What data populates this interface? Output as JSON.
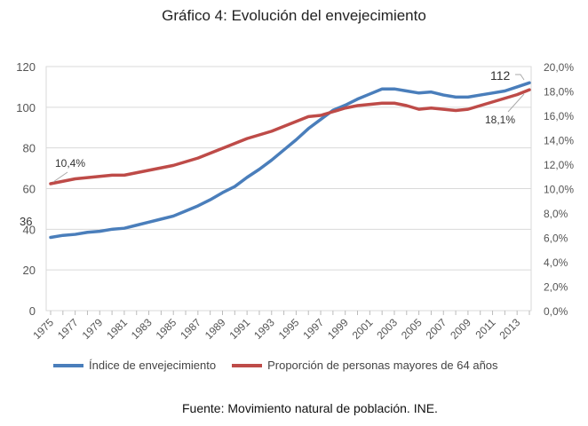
{
  "title": "Gráfico 4: Evolución del envejecimiento",
  "source": "Fuente: Movimiento natural de población. INE.",
  "chart_data": {
    "type": "line",
    "title": "Gráfico 4: Evolución del envejecimiento",
    "x": [
      1975,
      1976,
      1977,
      1978,
      1979,
      1980,
      1981,
      1982,
      1983,
      1984,
      1985,
      1986,
      1987,
      1988,
      1989,
      1990,
      1991,
      1992,
      1993,
      1994,
      1995,
      1996,
      1997,
      1998,
      1999,
      2000,
      2001,
      2002,
      2003,
      2004,
      2005,
      2006,
      2007,
      2008,
      2009,
      2010,
      2011,
      2012,
      2013,
      2014
    ],
    "x_tick_labels": [
      "1975",
      "1977",
      "1979",
      "1981",
      "1983",
      "1985",
      "1987",
      "1989",
      "1991",
      "1993",
      "1995",
      "1997",
      "1999",
      "2001",
      "2003",
      "2005",
      "2007",
      "2009",
      "2011",
      "2013"
    ],
    "y_left": {
      "range": [
        0,
        120
      ],
      "ticks": [
        "0",
        "20",
        "40",
        "60",
        "80",
        "100",
        "120"
      ]
    },
    "y_right": {
      "range": [
        0,
        20
      ],
      "ticks": [
        "0,0%",
        "2,0%",
        "4,0%",
        "6,0%",
        "8,0%",
        "10,0%",
        "12,0%",
        "14,0%",
        "16,0%",
        "18,0%",
        "20,0%"
      ]
    },
    "grid": true,
    "legend_position": "bottom",
    "series": [
      {
        "name": "Índice de envejecimiento",
        "axis": "left",
        "color": "#4a7ebb",
        "values": [
          36,
          37,
          37.5,
          38.5,
          39,
          40,
          40.5,
          42,
          43.5,
          45,
          46.5,
          49,
          51.5,
          54.5,
          58,
          61,
          65.5,
          69.5,
          74,
          79,
          84,
          89.5,
          94,
          98.5,
          101,
          104,
          106.5,
          109,
          109,
          108,
          107,
          107.5,
          106,
          105,
          105,
          106,
          107,
          108,
          110,
          112
        ],
        "labels": [
          {
            "year": 1975,
            "text": "36"
          },
          {
            "year": 2014,
            "text": "112"
          }
        ]
      },
      {
        "name": "Proporción de personas mayores de 64 años",
        "axis": "right",
        "color": "#be4b48",
        "values": [
          10.4,
          10.6,
          10.8,
          10.9,
          11.0,
          11.1,
          11.1,
          11.3,
          11.5,
          11.7,
          11.9,
          12.2,
          12.5,
          12.9,
          13.3,
          13.7,
          14.1,
          14.4,
          14.7,
          15.1,
          15.5,
          15.9,
          16.0,
          16.3,
          16.6,
          16.8,
          16.9,
          17.0,
          17.0,
          16.8,
          16.5,
          16.6,
          16.5,
          16.4,
          16.5,
          16.8,
          17.1,
          17.4,
          17.7,
          18.1
        ],
        "labels": [
          {
            "year": 1975,
            "text": "10,4%"
          },
          {
            "year": 2014,
            "text": "18,1%"
          }
        ]
      }
    ]
  }
}
